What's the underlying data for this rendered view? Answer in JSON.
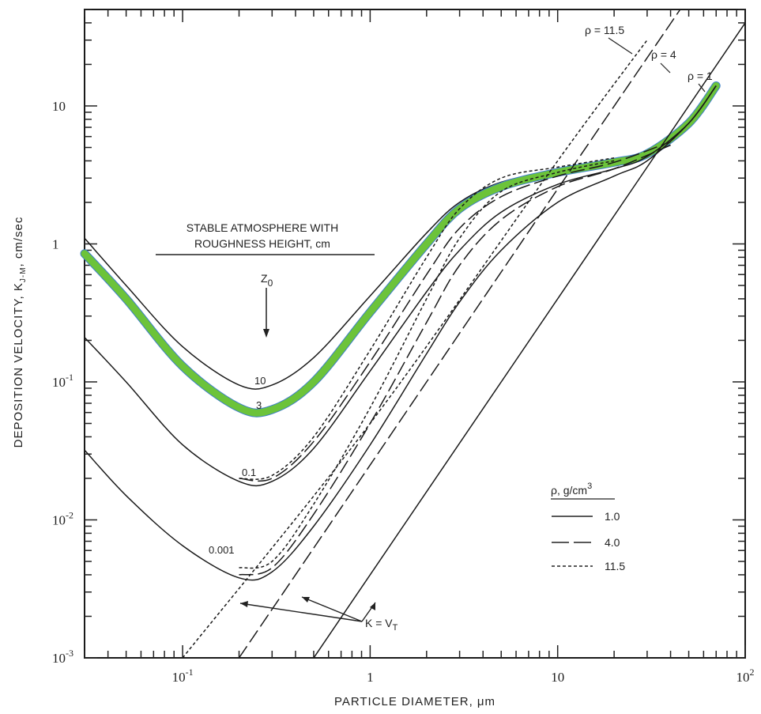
{
  "chart_data": {
    "type": "line",
    "scale": "log-log",
    "xlabel": "PARTICLE DIAMETER, μm",
    "ylabel": "DEPOSITION VELOCITY, K",
    "ylabel_subscript": "J-M",
    "ylabel_unit": ", cm/sec",
    "xlim": [
      0.03,
      100
    ],
    "ylim": [
      0.001,
      50
    ],
    "x_ticks": [
      {
        "value": 0.1,
        "base": "10",
        "exp": "-1"
      },
      {
        "value": 1,
        "base": "1",
        "exp": ""
      },
      {
        "value": 10,
        "base": "10",
        "exp": ""
      },
      {
        "value": 100,
        "base": "10",
        "exp": "2"
      }
    ],
    "y_ticks": [
      {
        "value": 0.001,
        "base": "10",
        "exp": "-3"
      },
      {
        "value": 0.01,
        "base": "10",
        "exp": "-2"
      },
      {
        "value": 0.1,
        "base": "10",
        "exp": "-1"
      },
      {
        "value": 1,
        "base": "1",
        "exp": ""
      },
      {
        "value": 10,
        "base": "10",
        "exp": ""
      }
    ],
    "annotation_title": [
      "STABLE ATMOSPHERE WITH",
      "ROUGHNESS HEIGHT, cm"
    ],
    "z0_label": "Z",
    "z0_sub": "0",
    "kvt_label": "K = V",
    "kvt_sub": "T",
    "legend": {
      "title": "ρ, g/cm",
      "title_sup": "3",
      "entries": [
        {
          "label": "1.0",
          "dash": "solid"
        },
        {
          "label": "4.0",
          "dash": "long-dash"
        },
        {
          "label": "11.5",
          "dash": "short-dash"
        }
      ]
    },
    "density_labels": [
      "ρ = 11.5",
      "ρ = 4",
      "ρ = 1"
    ],
    "curve_labels": [
      "10",
      "3",
      "0.1",
      "0.001"
    ],
    "series": [
      {
        "z0": "10",
        "density": 1.0,
        "dash": "solid",
        "x": [
          0.03,
          0.05,
          0.1,
          0.2,
          0.3,
          0.5,
          1,
          2,
          3,
          5,
          10,
          20,
          30,
          50,
          70
        ],
        "y": [
          1.1,
          0.5,
          0.18,
          0.095,
          0.095,
          0.15,
          0.42,
          1.2,
          2.0,
          2.8,
          3.4,
          3.9,
          4.6,
          7.5,
          14
        ]
      },
      {
        "z0": "3",
        "density": 1.0,
        "dash": "solid",
        "highlight": "#6cc33a",
        "x": [
          0.03,
          0.05,
          0.1,
          0.2,
          0.3,
          0.5,
          1,
          2,
          3,
          5,
          10,
          20,
          30,
          50,
          70
        ],
        "y": [
          0.85,
          0.4,
          0.13,
          0.065,
          0.063,
          0.1,
          0.32,
          1.0,
          1.8,
          2.6,
          3.3,
          3.9,
          4.5,
          7.5,
          14
        ]
      },
      {
        "z0": "0.1",
        "density": 1.0,
        "dash": "solid",
        "x": [
          0.03,
          0.05,
          0.1,
          0.2,
          0.3,
          0.5,
          1,
          2,
          3,
          5,
          10,
          20,
          30,
          50,
          70
        ],
        "y": [
          0.21,
          0.1,
          0.035,
          0.019,
          0.019,
          0.033,
          0.12,
          0.45,
          0.9,
          1.7,
          2.7,
          3.5,
          4.3,
          7.5,
          14
        ]
      },
      {
        "z0": "0.001",
        "density": 1.0,
        "dash": "solid",
        "x": [
          0.03,
          0.05,
          0.1,
          0.2,
          0.3,
          0.5,
          1,
          2,
          3,
          5,
          10,
          20,
          30,
          50,
          70
        ],
        "y": [
          0.032,
          0.015,
          0.0065,
          0.0038,
          0.0042,
          0.009,
          0.035,
          0.16,
          0.38,
          0.9,
          2.0,
          3.1,
          4.0,
          7.5,
          14
        ]
      },
      {
        "z0": "0.1",
        "density": 11.5,
        "dash": "short-dash",
        "x": [
          0.2,
          0.3,
          0.5,
          1,
          2,
          3,
          5,
          10,
          20
        ],
        "y": [
          0.02,
          0.021,
          0.04,
          0.17,
          0.8,
          1.8,
          3.0,
          3.6,
          4.2
        ]
      },
      {
        "z0": "0.001",
        "density": 11.5,
        "dash": "short-dash",
        "x": [
          0.2,
          0.3,
          0.5,
          1,
          2,
          3,
          5,
          10,
          20
        ],
        "y": [
          0.0045,
          0.005,
          0.013,
          0.065,
          0.4,
          1.1,
          2.4,
          3.3,
          4.0
        ]
      },
      {
        "z0": "0.1",
        "density": 4.0,
        "dash": "long-dash",
        "x": [
          0.2,
          0.3,
          0.5,
          1,
          2,
          3,
          5,
          10,
          20,
          40
        ],
        "y": [
          0.02,
          0.02,
          0.037,
          0.14,
          0.6,
          1.3,
          2.2,
          3.1,
          3.9,
          5.5
        ]
      },
      {
        "z0": "0.001",
        "density": 4.0,
        "dash": "long-dash",
        "x": [
          0.2,
          0.3,
          0.5,
          1,
          2,
          3,
          5,
          10,
          20,
          40
        ],
        "y": [
          0.004,
          0.0045,
          0.011,
          0.05,
          0.27,
          0.7,
          1.5,
          2.6,
          3.5,
          5.2
        ]
      },
      {
        "z0": "K = VT",
        "density": 11.5,
        "dash": "short-dash",
        "x": [
          0.1,
          1,
          10,
          30
        ],
        "y": [
          0.001,
          0.05,
          4,
          30
        ]
      },
      {
        "z0": "K = VT",
        "density": 4.0,
        "dash": "long-dash",
        "x": [
          0.2,
          1,
          10,
          45
        ],
        "y": [
          0.001,
          0.025,
          2.5,
          50
        ]
      },
      {
        "z0": "K = VT",
        "density": 1.0,
        "dash": "solid",
        "x": [
          0.5,
          1,
          10,
          100
        ],
        "y": [
          0.001,
          0.004,
          0.4,
          40
        ]
      }
    ]
  }
}
